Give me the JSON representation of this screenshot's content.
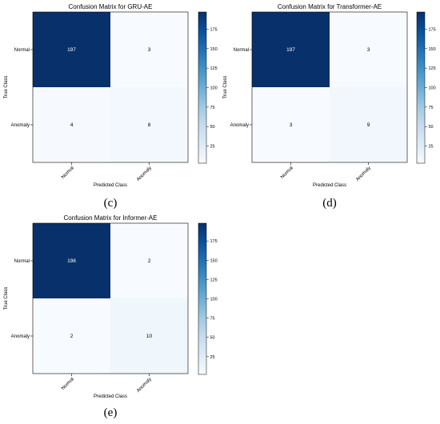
{
  "colormap": {
    "light": "#f7fbff",
    "dark": "#08306b"
  },
  "chart_data": [
    {
      "type": "heatmap",
      "title": "Confusion Matrix for GRU-AE",
      "xlabel": "Predicted Class",
      "ylabel": "True Class",
      "x_categories": [
        "Normal",
        "Anomaly"
      ],
      "y_categories": [
        "Normal",
        "Anomaly"
      ],
      "values": [
        [
          197,
          3
        ],
        [
          4,
          8
        ]
      ],
      "colorbar_ticks": [
        25,
        50,
        75,
        100,
        125,
        150,
        175
      ],
      "colorbar_range": [
        3,
        197
      ],
      "panel_label": "(c)"
    },
    {
      "type": "heatmap",
      "title": "Confusion Matrix for Transformer-AE",
      "xlabel": "Predicted Class",
      "ylabel": "True Class",
      "x_categories": [
        "Normal",
        "Anomaly"
      ],
      "y_categories": [
        "Normal",
        "Anomaly"
      ],
      "values": [
        [
          197,
          3
        ],
        [
          3,
          9
        ]
      ],
      "colorbar_ticks": [
        25,
        50,
        75,
        100,
        125,
        150,
        175
      ],
      "colorbar_range": [
        3,
        197
      ],
      "panel_label": "(d)"
    },
    {
      "type": "heatmap",
      "title": "Confusion Matrix for Informer-AE",
      "xlabel": "Predicted Class",
      "ylabel": "True Class",
      "x_categories": [
        "Normal",
        "Anomaly"
      ],
      "y_categories": [
        "Normal",
        "Anomaly"
      ],
      "values": [
        [
          198,
          2
        ],
        [
          2,
          10
        ]
      ],
      "colorbar_ticks": [
        25,
        50,
        75,
        100,
        125,
        150,
        175
      ],
      "colorbar_range": [
        2,
        198
      ],
      "panel_label": "(e)"
    }
  ]
}
